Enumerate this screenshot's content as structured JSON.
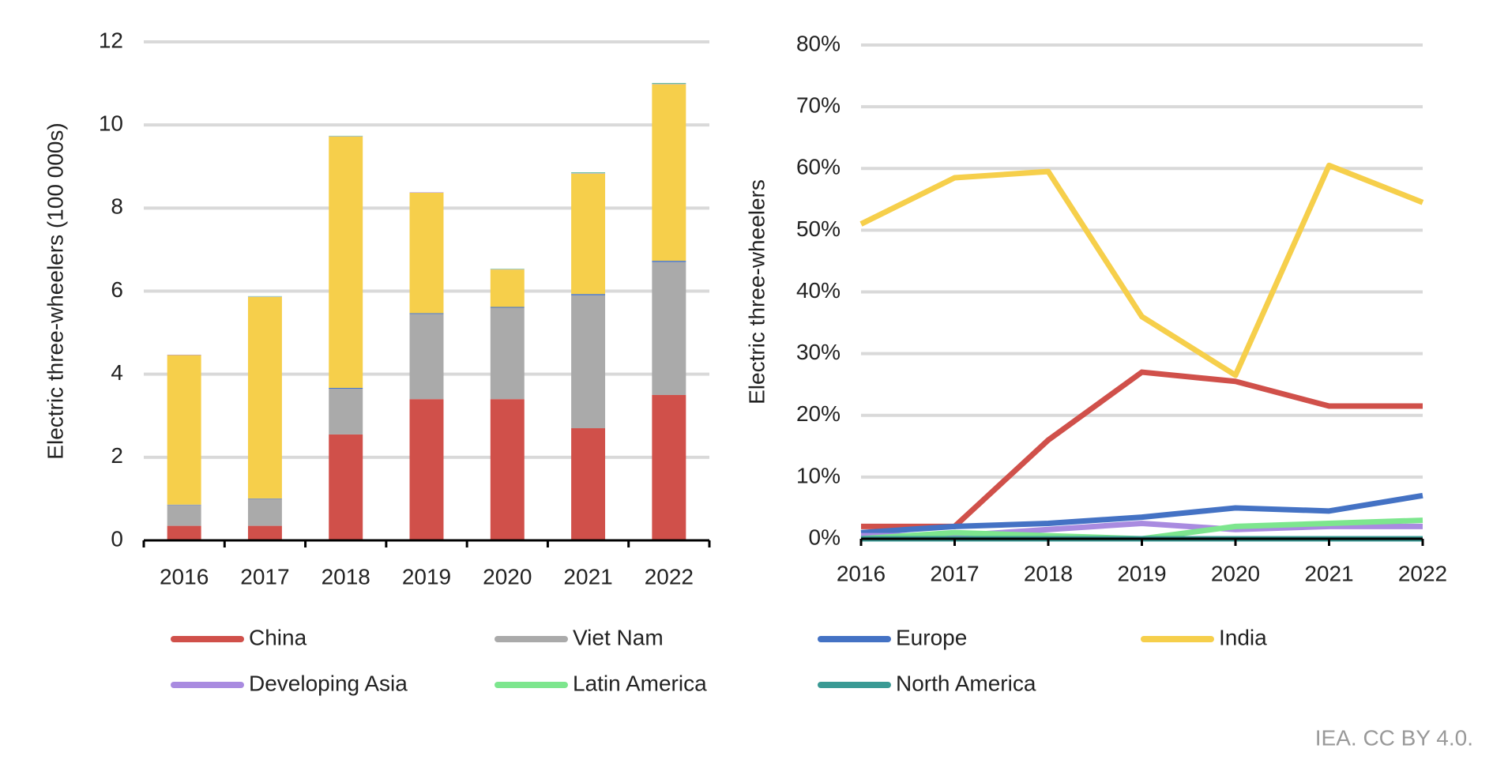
{
  "chart_data": [
    {
      "type": "bar",
      "stacked": true,
      "y_label": "Electric three-wheelers  (100 000s)",
      "categories": [
        "2016",
        "2017",
        "2018",
        "2019",
        "2020",
        "2021",
        "2022"
      ],
      "ylim": [
        0,
        12
      ],
      "yticks": [
        0,
        2,
        4,
        6,
        8,
        10,
        12
      ],
      "grid": true,
      "legend": "bottom",
      "series": [
        {
          "name": "China",
          "color": "#d0504a",
          "values": [
            0.35,
            0.35,
            2.55,
            3.4,
            3.4,
            2.7,
            3.5
          ]
        },
        {
          "name": "Viet Nam",
          "color": "#aaaaaa",
          "values": [
            0.5,
            0.65,
            1.1,
            2.05,
            2.2,
            3.2,
            3.2
          ]
        },
        {
          "name": "Europe",
          "color": "#4472c4",
          "values": [
            0.01,
            0.01,
            0.02,
            0.02,
            0.02,
            0.03,
            0.03
          ]
        },
        {
          "name": "India",
          "color": "#f6cf4b",
          "values": [
            3.6,
            4.85,
            6.05,
            2.9,
            0.9,
            2.9,
            4.25
          ]
        },
        {
          "name": "Developing Asia",
          "color": "#a98be0",
          "values": [
            0.01,
            0.01,
            0.01,
            0.01,
            0.01,
            0.01,
            0.01
          ]
        },
        {
          "name": "Latin America",
          "color": "#7de68e",
          "values": [
            0,
            0.01,
            0.01,
            0,
            0.01,
            0.01,
            0.01
          ]
        },
        {
          "name": "North America",
          "color": "#3a9a94",
          "values": [
            0,
            0,
            0,
            0,
            0,
            0.01,
            0.01
          ]
        }
      ]
    },
    {
      "type": "line",
      "y_label": "Electric three-wheelers",
      "categories": [
        "2016",
        "2017",
        "2018",
        "2019",
        "2020",
        "2021",
        "2022"
      ],
      "ylim": [
        0,
        80
      ],
      "grid": true,
      "yticks": [
        {
          "value": 0,
          "label": "0%"
        },
        {
          "value": 10,
          "label": "10%"
        },
        {
          "value": 20,
          "label": "20%"
        },
        {
          "value": 30,
          "label": "30%"
        },
        {
          "value": 40,
          "label": "40%"
        },
        {
          "value": 50,
          "label": "50%"
        },
        {
          "value": 60,
          "label": "60%"
        },
        {
          "value": 70,
          "label": "70%"
        },
        {
          "value": 80,
          "label": "80%"
        }
      ],
      "series": [
        {
          "name": "China",
          "color": "#d0504a",
          "values": [
            2,
            2,
            16,
            27,
            25.5,
            21.5,
            21.5
          ]
        },
        {
          "name": "Europe",
          "color": "#4472c4",
          "values": [
            1,
            2,
            2.5,
            3.5,
            5,
            4.5,
            7
          ]
        },
        {
          "name": "India",
          "color": "#f6cf4b",
          "values": [
            51,
            58.5,
            59.5,
            36,
            26.5,
            60.5,
            54.5
          ]
        },
        {
          "name": "Developing Asia",
          "color": "#a98be0",
          "values": [
            0.5,
            0.5,
            1.5,
            2.5,
            1.5,
            2,
            2
          ]
        },
        {
          "name": "Latin America",
          "color": "#7de68e",
          "values": [
            0,
            1,
            0.5,
            0,
            2,
            2.5,
            3
          ]
        },
        {
          "name": "North America",
          "color": "#3a9a94",
          "values": [
            0,
            0,
            0,
            0,
            0,
            0,
            0
          ]
        }
      ]
    }
  ],
  "footer": "IEA. CC BY 4.0."
}
